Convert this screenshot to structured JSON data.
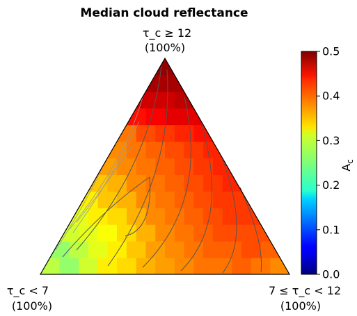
{
  "chart_data": {
    "type": "heatmap",
    "subtype": "ternary",
    "title": "Median cloud reflectance",
    "corners": {
      "top": {
        "label": "τ_c ≥ 12",
        "pct": "(100%)"
      },
      "left": {
        "label": "τ_c < 7",
        "pct": "(100%)"
      },
      "right": {
        "label": "7 ≤ τ_c < 12",
        "pct": "(100%)"
      }
    },
    "grid_rows": 13,
    "colorbar": {
      "label": "A_c",
      "label_main": "A",
      "label_sub": "c",
      "colormap": "jet",
      "range": [
        0.0,
        0.5
      ],
      "ticks": [
        "0.0",
        "0.1",
        "0.2",
        "0.3",
        "0.4",
        "0.5"
      ]
    },
    "cells_note": "rows from bottom (0) to top (12); values are median A_c per (row, column) bin",
    "cells": [
      {
        "row": 0,
        "values": [
          0.28,
          0.26,
          0.29,
          0.32,
          0.33,
          0.35,
          0.36,
          0.37,
          0.38,
          0.38,
          0.39,
          0.38,
          0.37,
          null
        ]
      },
      {
        "row": 1,
        "values": [
          0.26,
          0.28,
          0.3,
          0.32,
          0.34,
          0.36,
          0.37,
          0.38,
          0.39,
          0.39,
          0.4,
          0.39,
          0.36
        ]
      },
      {
        "row": 2,
        "values": [
          0.29,
          0.3,
          0.31,
          0.33,
          0.35,
          0.37,
          0.38,
          0.39,
          0.4,
          0.4,
          0.4,
          0.37
        ]
      },
      {
        "row": 3,
        "values": [
          0.3,
          0.32,
          0.33,
          0.35,
          0.37,
          0.38,
          0.39,
          0.4,
          0.41,
          0.41,
          0.4
        ]
      },
      {
        "row": 4,
        "values": [
          0.32,
          0.34,
          0.35,
          0.37,
          0.38,
          0.39,
          0.4,
          0.41,
          0.41,
          0.41
        ]
      },
      {
        "row": 5,
        "values": [
          0.34,
          0.35,
          0.37,
          0.38,
          0.39,
          0.4,
          0.41,
          0.42,
          0.42
        ]
      },
      {
        "row": 6,
        "values": [
          0.36,
          0.37,
          0.38,
          0.39,
          0.4,
          0.41,
          0.42,
          0.42
        ]
      },
      {
        "row": 7,
        "values": [
          0.37,
          0.38,
          0.39,
          0.4,
          0.41,
          0.42,
          0.43
        ]
      },
      {
        "row": 8,
        "values": [
          0.38,
          0.4,
          0.41,
          0.42,
          0.43,
          0.43
        ]
      },
      {
        "row": 9,
        "values": [
          0.43,
          0.44,
          0.45,
          0.45,
          0.45
        ]
      },
      {
        "row": 10,
        "values": [
          0.46,
          0.46,
          0.47,
          0.46
        ]
      },
      {
        "row": 11,
        "values": [
          0.48,
          0.48,
          0.47
        ]
      },
      {
        "row": 12,
        "values": [
          0.49,
          0.49
        ]
      }
    ],
    "contours": "yes (black and grey contour lines overlaid)",
    "grid": false,
    "legend": "colorbar right"
  }
}
